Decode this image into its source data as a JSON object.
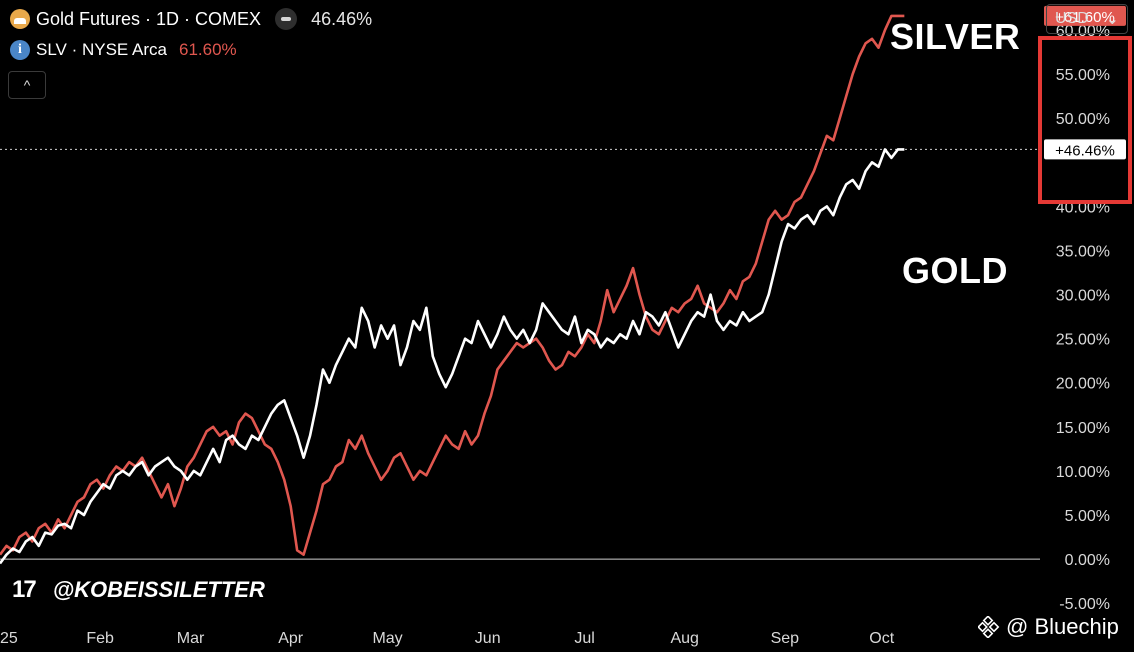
{
  "legend": {
    "gold_name": "Gold Futures · 1D · COMEX",
    "gold_value": "46.46%",
    "silver_name": "SLV · NYSE Arca",
    "silver_value": "61.60%",
    "info_glyph": "i",
    "collapse_glyph": "^"
  },
  "toolbar": {
    "currency": "USD",
    "currency_chevron": "⌄"
  },
  "labels": {
    "silver": "SILVER",
    "gold": "GOLD"
  },
  "watermark": {
    "tv_logo": "17",
    "handle": "@KOBEISSILETTER"
  },
  "brand": {
    "name": "@ Bluechip"
  },
  "colors": {
    "background": "#000000",
    "gold_line": "#ffffff",
    "silver_line": "#e0574f",
    "highlight_box": "#e53935"
  },
  "chart_data": {
    "type": "line",
    "x_tick_labels": [
      "25",
      "Feb",
      "Mar",
      "Apr",
      "May",
      "Jun",
      "Jul",
      "Aug",
      "Sep",
      "Oct"
    ],
    "y_tick_labels": [
      "-5.00%",
      "0.00%",
      "5.00%",
      "10.00%",
      "15.00%",
      "20.00%",
      "25.00%",
      "30.00%",
      "35.00%",
      "40.00%",
      "50.00%",
      "55.00%",
      "60.00%"
    ],
    "y_ticks": [
      -5,
      0,
      5,
      10,
      15,
      20,
      25,
      30,
      35,
      40,
      50,
      55,
      60
    ],
    "ylim": [
      -6,
      62.5
    ],
    "x": [
      0,
      2,
      4,
      6,
      8,
      10,
      12,
      14,
      16,
      18,
      20,
      22,
      24,
      26,
      28,
      30,
      32,
      34,
      36,
      38,
      40,
      42,
      44,
      46,
      48,
      50,
      52,
      54,
      56,
      58,
      60,
      62,
      64,
      66,
      68,
      70,
      72,
      74,
      76,
      78,
      80,
      82,
      84,
      86,
      88,
      90,
      92,
      94,
      96,
      98,
      100,
      102,
      104,
      106,
      108,
      110,
      112,
      114,
      116,
      118,
      120,
      122,
      124,
      126,
      128,
      130,
      132,
      134,
      136,
      138,
      140,
      142,
      144,
      146,
      148,
      150,
      152,
      154,
      156,
      158,
      160,
      162,
      164,
      166,
      168,
      170,
      172,
      174,
      176,
      178,
      180,
      182,
      184,
      186,
      188,
      190,
      192,
      194,
      196,
      198,
      200,
      202,
      204,
      206,
      208,
      210,
      212,
      214,
      216,
      218,
      220,
      222,
      224,
      226,
      228,
      230,
      232,
      234,
      236,
      238,
      240,
      242,
      244,
      246,
      248,
      250,
      252,
      254,
      256,
      258,
      260,
      262,
      264,
      266,
      268,
      270,
      272,
      274,
      276,
      278,
      280
    ],
    "x_ticks": [
      0,
      31,
      59,
      90,
      120,
      151,
      181,
      212,
      243,
      273
    ],
    "xlim": [
      0,
      322
    ],
    "series": [
      {
        "name": "Gold Futures · 1D · COMEX",
        "color": "#ffffff",
        "last_value_label": "+46.46%",
        "values": [
          -0.5,
          0.5,
          1.2,
          0.8,
          2.0,
          2.5,
          1.5,
          3.0,
          2.8,
          3.8,
          4.0,
          3.5,
          5.5,
          5.0,
          6.5,
          7.5,
          8.5,
          8.0,
          9.5,
          10.0,
          9.5,
          10.5,
          11.0,
          9.5,
          10.5,
          11.0,
          11.5,
          10.5,
          10.0,
          9.0,
          10.0,
          9.5,
          11.0,
          12.5,
          11.0,
          13.5,
          14.0,
          13.0,
          12.5,
          14.0,
          13.5,
          15.0,
          16.5,
          17.5,
          18.0,
          16.0,
          14.0,
          11.5,
          14.0,
          17.5,
          21.5,
          20.0,
          22.0,
          23.5,
          25.0,
          24.0,
          28.5,
          27.0,
          24.0,
          26.5,
          25.0,
          26.5,
          22.0,
          24.0,
          27.0,
          26.0,
          28.5,
          23.0,
          21.0,
          19.5,
          21.0,
          23.0,
          25.0,
          24.5,
          27.0,
          25.5,
          24.0,
          25.5,
          27.5,
          26.0,
          25.0,
          26.0,
          24.5,
          26.0,
          29.0,
          28.0,
          27.0,
          26.0,
          25.5,
          27.5,
          24.5,
          26.0,
          25.5,
          24.0,
          25.0,
          24.5,
          25.5,
          25.0,
          27.0,
          25.5,
          28.0,
          27.5,
          26.5,
          28.0,
          26.0,
          24.0,
          25.5,
          27.0,
          28.0,
          27.5,
          30.0,
          27.0,
          26.0,
          27.0,
          26.5,
          28.0,
          27.0,
          27.5,
          28.0,
          30.0,
          33.0,
          36.0,
          38.0,
          37.5,
          38.5,
          39.0,
          38.0,
          39.5,
          40.0,
          39.0,
          41.0,
          42.5,
          43.0,
          42.0,
          44.0,
          45.0,
          44.5,
          46.46,
          45.5,
          46.46,
          46.46
        ],
        "x_last": 280
      },
      {
        "name": "SLV · NYSE Arca",
        "color": "#e0574f",
        "last_value_label": "+61.60%",
        "values": [
          0.5,
          1.5,
          1.0,
          2.5,
          3.0,
          2.0,
          3.5,
          4.0,
          3.0,
          4.5,
          3.5,
          5.0,
          6.5,
          7.0,
          8.5,
          9.0,
          8.0,
          9.5,
          10.5,
          10.0,
          11.0,
          10.5,
          11.5,
          10.0,
          8.5,
          7.0,
          8.5,
          6.0,
          8.0,
          10.5,
          11.5,
          13.0,
          14.5,
          15.0,
          14.0,
          14.5,
          13.0,
          15.5,
          16.5,
          16.0,
          14.5,
          13.0,
          12.5,
          11.0,
          9.0,
          6.0,
          1.0,
          0.5,
          3.0,
          5.5,
          8.5,
          9.0,
          10.5,
          11.0,
          13.5,
          12.5,
          14.0,
          12.0,
          10.5,
          9.0,
          10.0,
          11.5,
          12.0,
          10.5,
          9.0,
          10.0,
          9.5,
          11.0,
          12.5,
          14.0,
          13.0,
          12.5,
          14.5,
          13.0,
          14.0,
          16.5,
          18.5,
          21.5,
          22.5,
          23.5,
          24.5,
          24.0,
          24.5,
          25.0,
          24.0,
          22.5,
          21.5,
          22.0,
          23.5,
          23.0,
          24.0,
          25.5,
          24.5,
          27.0,
          30.5,
          28.0,
          29.5,
          31.0,
          33.0,
          30.0,
          27.5,
          26.0,
          25.5,
          27.0,
          28.5,
          28.0,
          29.0,
          29.5,
          31.0,
          29.0,
          28.5,
          28.0,
          29.0,
          30.5,
          29.5,
          31.5,
          32.0,
          33.5,
          36.0,
          38.5,
          39.5,
          38.5,
          39.0,
          40.5,
          41.0,
          42.5,
          44.0,
          46.0,
          48.0,
          47.5,
          50.0,
          52.5,
          55.0,
          57.0,
          58.5,
          59.0,
          58.0,
          60.0,
          61.6,
          61.6,
          61.6
        ],
        "x_last": 280
      }
    ],
    "current_line_value": 46.46,
    "grid": false,
    "legend_position": "top-left"
  }
}
